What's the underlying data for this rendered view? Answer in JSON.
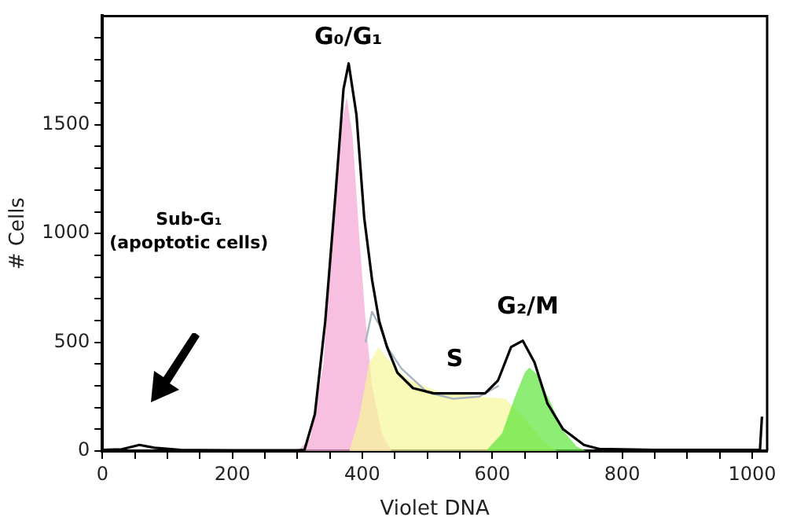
{
  "chart_data": {
    "type": "area",
    "xlabel": "Violet DNA",
    "ylabel": "# Cells",
    "legend": false,
    "grid": false,
    "xlim": [
      0,
      1023
    ],
    "ylim": [
      0,
      2000
    ],
    "xticks": [
      0,
      {
        "value": 50,
        "label": null
      },
      {
        "value": 100,
        "label": null
      },
      {
        "value": 150,
        "label": null
      },
      200,
      {
        "value": 250,
        "label": null
      },
      {
        "value": 300,
        "label": null
      },
      {
        "value": 350,
        "label": null
      },
      400,
      {
        "value": 450,
        "label": null
      },
      {
        "value": 500,
        "label": null
      },
      {
        "value": 550,
        "label": null
      },
      600,
      {
        "value": 650,
        "label": null
      },
      {
        "value": 700,
        "label": null
      },
      {
        "value": 750,
        "label": null
      },
      800,
      {
        "value": 850,
        "label": null
      },
      {
        "value": 900,
        "label": null
      },
      {
        "value": 950,
        "label": null
      },
      1000
    ],
    "yticks": [
      0,
      {
        "value": 100,
        "label": null
      },
      {
        "value": 200,
        "label": null
      },
      {
        "value": 300,
        "label": null
      },
      {
        "value": 400,
        "label": null
      },
      500,
      {
        "value": 600,
        "label": null
      },
      {
        "value": 700,
        "label": null
      },
      {
        "value": 800,
        "label": null
      },
      {
        "value": 900,
        "label": null
      },
      1000,
      {
        "value": 1100,
        "label": null
      },
      {
        "value": 1200,
        "label": null
      },
      {
        "value": 1300,
        "label": null
      },
      {
        "value": 1400,
        "label": null
      },
      1500,
      {
        "value": 1600,
        "label": null
      },
      {
        "value": 1700,
        "label": null
      },
      {
        "value": 1800,
        "label": null
      },
      {
        "value": 1900,
        "label": null
      }
    ],
    "series": [
      {
        "type": "line",
        "color": "#000000",
        "x": [
          0,
          30,
          57,
          80,
          120,
          200,
          300,
          311,
          327,
          343,
          359,
          371,
          379,
          391,
          403,
          415,
          426,
          438,
          454,
          478,
          510,
          550,
          589,
          609,
          629,
          647,
          665,
          685,
          709,
          741,
          764,
          850,
          950,
          1005,
          1012,
          1015
        ],
        "values": [
          5,
          8,
          28,
          15,
          5,
          3,
          3,
          5,
          170,
          597,
          1190,
          1663,
          1782,
          1545,
          1070,
          787,
          597,
          478,
          360,
          289,
          265,
          265,
          265,
          325,
          478,
          507,
          407,
          218,
          100,
          28,
          10,
          5,
          5,
          5,
          5,
          158
        ]
      },
      {
        "type": "line",
        "color": "#a8b4c0",
        "x": [
          405,
          415,
          426,
          440,
          460,
          500,
          540,
          580,
          610
        ],
        "values": [
          500,
          640,
          580,
          470,
          380,
          270,
          240,
          250,
          300
        ]
      },
      {
        "color": "#5ee63a",
        "x": [
          590,
          615,
          635,
          650,
          657,
          670,
          690,
          710,
          730,
          745
        ],
        "values": [
          0,
          80,
          250,
          360,
          384,
          350,
          220,
          90,
          20,
          0
        ]
      },
      {
        "color": "#f7f79a",
        "x": [
          380,
          395,
          410,
          425,
          440,
          470,
          520,
          580,
          620,
          650,
          680,
          700
        ],
        "values": [
          0,
          150,
          400,
          478,
          420,
          330,
          270,
          250,
          240,
          150,
          40,
          0
        ]
      },
      {
        "color": "#f4a6d4",
        "x": [
          300,
          320,
          340,
          355,
          368,
          376,
          385,
          395,
          405,
          415,
          430,
          445
        ],
        "values": [
          0,
          60,
          400,
          1000,
          1500,
          1628,
          1450,
          1000,
          600,
          300,
          80,
          0
        ]
      }
    ],
    "annotations": [
      "G₀/G₁",
      "S",
      "G₂/M",
      "Sub-G₁\n(apoptotic cells)"
    ]
  }
}
